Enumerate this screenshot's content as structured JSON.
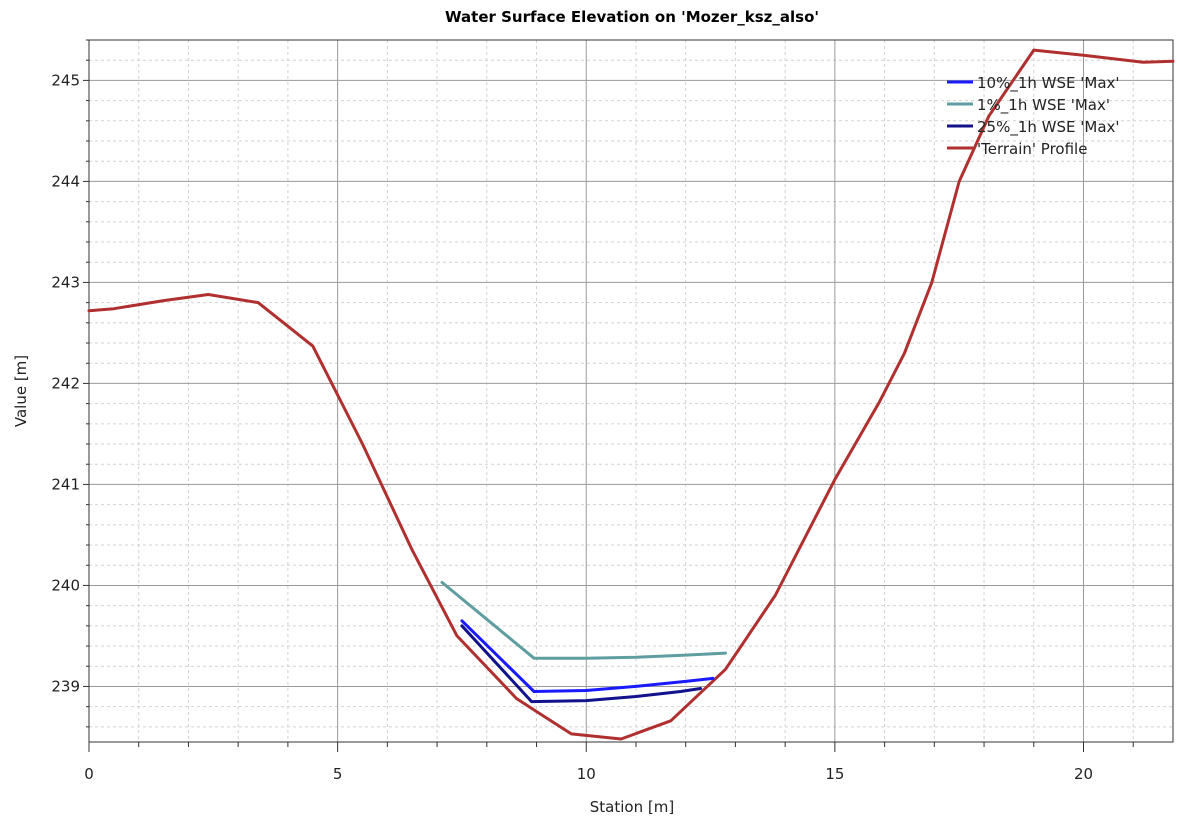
{
  "chart_data": {
    "type": "line",
    "title": "Water Surface Elevation on 'Mozer_ksz_also'",
    "xlabel": "Station [m]",
    "ylabel": "Value [m]",
    "xlim": [
      0,
      21.8
    ],
    "ylim": [
      238.45,
      245.4
    ],
    "x_ticks": [
      0,
      5,
      10,
      15,
      20
    ],
    "y_ticks": [
      239,
      240,
      241,
      242,
      243,
      244,
      245
    ],
    "grid": true,
    "legend_position": "top-right",
    "series": [
      {
        "name": "10%_1h WSE 'Max'",
        "color": "#1a1aff",
        "x": [
          7.5,
          8.95,
          10.0,
          11.0,
          12.0,
          12.55
        ],
        "y": [
          239.65,
          238.95,
          238.96,
          239.0,
          239.05,
          239.08
        ]
      },
      {
        "name": "1%_1h WSE 'Max'",
        "color": "#5f9ea0",
        "x": [
          7.1,
          8.95,
          10.0,
          11.0,
          12.0,
          12.8
        ],
        "y": [
          240.03,
          239.28,
          239.28,
          239.29,
          239.31,
          239.33
        ]
      },
      {
        "name": "25%_1h WSE 'Max'",
        "color": "#12128c",
        "x": [
          7.5,
          8.9,
          10.0,
          11.0,
          11.9,
          12.3
        ],
        "y": [
          239.6,
          238.85,
          238.86,
          238.9,
          238.95,
          238.98
        ]
      },
      {
        "name": "'Terrain' Profile",
        "color": "#b03030",
        "x": [
          0,
          0.5,
          1.5,
          2.4,
          3.4,
          4.5,
          5.5,
          6.5,
          7.4,
          8.6,
          9.1,
          9.7,
          10.7,
          11.7,
          12.8,
          13.8,
          15.0,
          15.9,
          16.4,
          16.95,
          17.5,
          18.1,
          19.0,
          20.0,
          21.2,
          21.8
        ],
        "y": [
          242.72,
          242.74,
          242.82,
          242.88,
          242.8,
          242.37,
          241.4,
          240.35,
          239.5,
          238.88,
          238.72,
          238.53,
          238.48,
          238.66,
          239.17,
          239.9,
          241.05,
          241.82,
          242.3,
          243.0,
          244.0,
          244.65,
          245.3,
          245.25,
          245.18,
          245.19
        ]
      }
    ]
  }
}
